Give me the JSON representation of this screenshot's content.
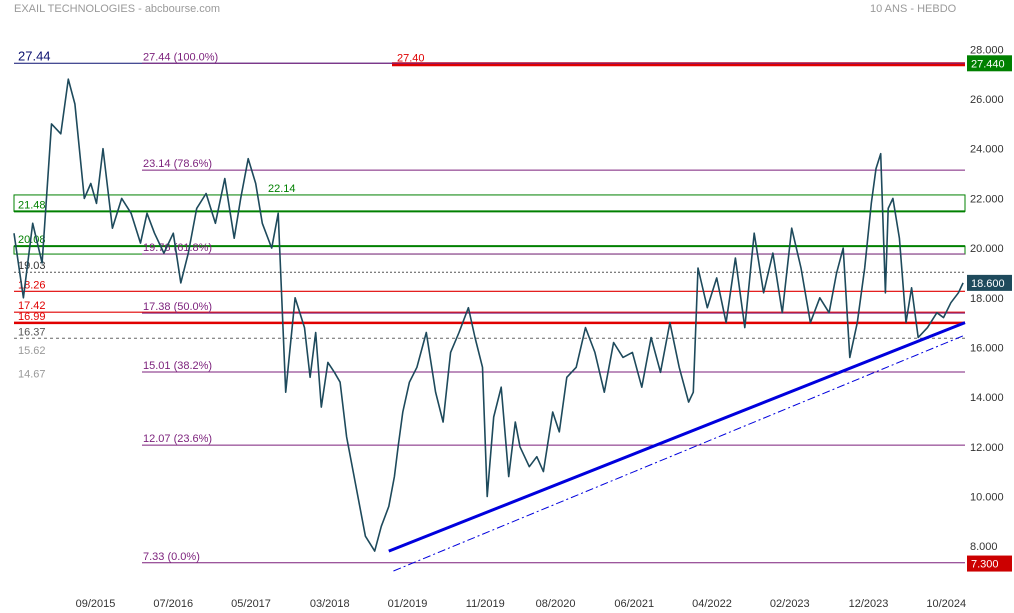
{
  "header": {
    "title": "EXAIL TECHNOLOGIES - abcbourse.com",
    "period": "10 ANS - HEBDO"
  },
  "colors": {
    "price_line": "#1e4a5c",
    "fib_line": "#7b1f7b",
    "fib_text": "#7b1f7b",
    "support_red": "#e00000",
    "support_green": "#008000",
    "trend_blue": "#0000dd",
    "label_dark_navy": "#0a1070",
    "dotted_gray": "#555555",
    "current_box": "#1e4a5c",
    "high_box": "#008000",
    "low_box": "#cc0000"
  },
  "chart_data": {
    "type": "line",
    "title": "EXAIL TECHNOLOGIES - abcbourse.com",
    "subtitle": "10 ANS - HEBDO",
    "xlabel": "",
    "ylabel": "",
    "ylim": [
      7,
      28.7
    ],
    "xlim": [
      2014.8,
      2024.95
    ],
    "grid": false,
    "y_ticks": [
      8,
      10,
      12,
      14,
      16,
      18,
      20,
      22,
      24,
      26,
      28
    ],
    "y_tick_labels": [
      "8.000",
      "10.000",
      "12.000",
      "14.000",
      "16.000",
      "18.000",
      "20.000",
      "22.000",
      "24.000",
      "26.000",
      "28.000"
    ],
    "x_ticks": [
      {
        "x": 2015.67,
        "label": "09/2015"
      },
      {
        "x": 2016.5,
        "label": "07/2016"
      },
      {
        "x": 2017.33,
        "label": "05/2017"
      },
      {
        "x": 2018.17,
        "label": "03/2018"
      },
      {
        "x": 2019.0,
        "label": "01/2019"
      },
      {
        "x": 2019.83,
        "label": "11/2019"
      },
      {
        "x": 2020.58,
        "label": "08/2020"
      },
      {
        "x": 2021.42,
        "label": "06/2021"
      },
      {
        "x": 2022.25,
        "label": "04/2022"
      },
      {
        "x": 2023.08,
        "label": "02/2023"
      },
      {
        "x": 2023.92,
        "label": "12/2023"
      },
      {
        "x": 2024.75,
        "label": "10/2024"
      }
    ],
    "series": [
      {
        "name": "",
        "x": [
          2014.8,
          2014.9,
          2015.0,
          2015.1,
          2015.2,
          2015.3,
          2015.38,
          2015.45,
          2015.55,
          2015.62,
          2015.68,
          2015.75,
          2015.85,
          2015.95,
          2016.05,
          2016.15,
          2016.22,
          2016.3,
          2016.4,
          2016.5,
          2016.58,
          2016.66,
          2016.75,
          2016.85,
          2016.95,
          2017.05,
          2017.15,
          2017.22,
          2017.3,
          2017.38,
          2017.45,
          2017.55,
          2017.62,
          2017.7,
          2017.8,
          2017.9,
          2017.96,
          2018.02,
          2018.08,
          2018.15,
          2018.22,
          2018.28,
          2018.35,
          2018.45,
          2018.55,
          2018.65,
          2018.72,
          2018.8,
          2018.86,
          2018.9,
          2018.95,
          2019.02,
          2019.1,
          2019.2,
          2019.3,
          2019.38,
          2019.46,
          2019.55,
          2019.65,
          2019.72,
          2019.8,
          2019.85,
          2019.92,
          2020.0,
          2020.08,
          2020.15,
          2020.2,
          2020.3,
          2020.38,
          2020.45,
          2020.55,
          2020.62,
          2020.7,
          2020.8,
          2020.9,
          2021.0,
          2021.1,
          2021.2,
          2021.3,
          2021.4,
          2021.5,
          2021.6,
          2021.7,
          2021.8,
          2021.9,
          2022.0,
          2022.05,
          2022.1,
          2022.2,
          2022.3,
          2022.4,
          2022.5,
          2022.6,
          2022.7,
          2022.8,
          2022.9,
          2023.0,
          2023.1,
          2023.2,
          2023.3,
          2023.4,
          2023.5,
          2023.58,
          2023.65,
          2023.72,
          2023.8,
          2023.88,
          2023.95,
          2024.0,
          2024.05,
          2024.1,
          2024.13,
          2024.18,
          2024.25,
          2024.32,
          2024.38,
          2024.45,
          2024.55,
          2024.65,
          2024.72,
          2024.8,
          2024.88,
          2024.93
        ],
        "values": [
          20.6,
          18.0,
          21.0,
          19.4,
          25.0,
          24.6,
          26.8,
          25.8,
          22.0,
          22.6,
          21.8,
          24.0,
          20.8,
          22.0,
          21.4,
          20.2,
          21.4,
          20.6,
          19.8,
          20.6,
          18.6,
          19.8,
          21.6,
          22.2,
          21.0,
          22.8,
          20.4,
          22.0,
          23.6,
          22.6,
          21.0,
          20.0,
          21.4,
          14.2,
          18.0,
          16.8,
          14.8,
          16.6,
          13.6,
          15.4,
          15.0,
          14.6,
          12.4,
          10.4,
          8.4,
          7.8,
          8.8,
          9.6,
          10.8,
          12.0,
          13.4,
          14.6,
          15.2,
          16.6,
          14.2,
          13.0,
          15.8,
          16.6,
          17.6,
          16.4,
          15.2,
          10.0,
          13.2,
          14.4,
          10.8,
          13.0,
          12.0,
          11.2,
          11.6,
          11.0,
          13.4,
          12.6,
          14.8,
          15.2,
          16.8,
          15.8,
          14.2,
          16.2,
          15.6,
          15.8,
          14.4,
          16.4,
          15.0,
          17.0,
          15.2,
          13.8,
          14.2,
          19.2,
          17.6,
          18.8,
          17.0,
          19.6,
          16.8,
          20.6,
          18.2,
          19.8,
          17.4,
          20.8,
          19.2,
          17.0,
          18.0,
          17.4,
          19.0,
          20.0,
          15.6,
          17.0,
          19.2,
          21.8,
          23.2,
          23.8,
          18.2,
          21.6,
          22.0,
          20.4,
          17.0,
          18.4,
          16.4,
          16.8,
          17.4,
          17.2,
          17.8,
          18.2,
          18.6
        ]
      }
    ],
    "horizontal_levels": [
      {
        "value": 27.44,
        "label": "27.44",
        "kind": "navy"
      },
      {
        "value": 27.4,
        "label": "27.40",
        "kind": "red-thick"
      },
      {
        "value": 21.48,
        "label": "21.48",
        "kind": "green"
      },
      {
        "value": 20.08,
        "label": "20.08",
        "kind": "green"
      },
      {
        "value": 19.03,
        "label": "19.03",
        "kind": "dotted"
      },
      {
        "value": 18.26,
        "label": "18.26",
        "kind": "red"
      },
      {
        "value": 17.42,
        "label": "17.42",
        "kind": "red"
      },
      {
        "value": 16.99,
        "label": "16.99",
        "kind": "red"
      },
      {
        "value": 16.37,
        "label": "16.37",
        "kind": "dashed-gray"
      },
      {
        "value": 15.62,
        "label": "15.62",
        "kind": "gray-label"
      },
      {
        "value": 14.67,
        "label": "14.67",
        "kind": "gray-label"
      }
    ],
    "fib_levels": [
      {
        "value": 27.44,
        "label": "27.44  (100.0%)"
      },
      {
        "value": 23.14,
        "label": "23.14  (78.6%)"
      },
      {
        "value": 22.14,
        "label": "22.14"
      },
      {
        "value": 19.76,
        "label": "19.76  (61.8%)"
      },
      {
        "value": 17.38,
        "label": "17.38  (50.0%)"
      },
      {
        "value": 15.01,
        "label": "15.01  (38.2%)"
      },
      {
        "value": 12.07,
        "label": "12.07  (23.6%)"
      },
      {
        "value": 7.33,
        "label": "7.33  (0.0%)"
      }
    ],
    "trendlines": [
      {
        "kind": "solid",
        "from": [
          2018.8,
          7.8
        ],
        "to": [
          2024.95,
          17.0
        ]
      },
      {
        "kind": "dashdot",
        "from": [
          2018.85,
          7.0
        ],
        "to": [
          2024.95,
          16.5
        ]
      }
    ],
    "price_boxes": [
      {
        "value": 27.44,
        "label": "27.440",
        "kind": "high"
      },
      {
        "value": 18.6,
        "label": "18.600",
        "kind": "current"
      },
      {
        "value": 7.3,
        "label": "7.300",
        "kind": "low"
      }
    ]
  }
}
